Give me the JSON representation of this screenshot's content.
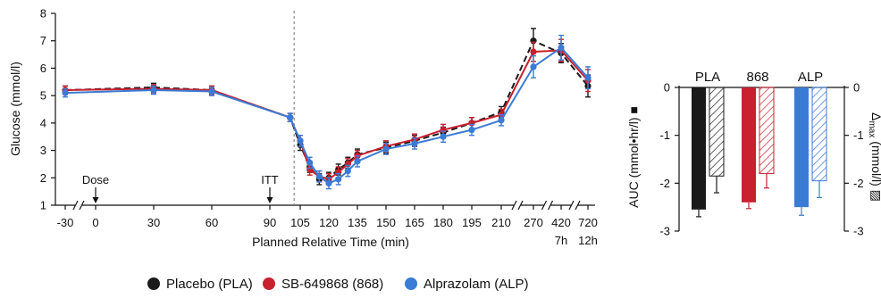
{
  "colors": {
    "placebo": "#1a1a1a",
    "sb": "#c8202f",
    "alp": "#3a7bd5",
    "axis": "#111111",
    "dashed_vline": "#8a8a8a"
  },
  "chart_data": [
    {
      "type": "line",
      "ylabel": "Glucose (mmol/l)",
      "xlabel": "Planned Relative Time (min)",
      "ylim": [
        1,
        8
      ],
      "yticks": [
        1,
        2,
        3,
        4,
        5,
        6,
        7,
        8
      ],
      "xtick_labels": [
        "-30",
        "0",
        "30",
        "60",
        "90",
        "105",
        "120",
        "135",
        "150",
        "165",
        "180",
        "195",
        "210",
        "270",
        "420",
        "720"
      ],
      "xtick_sublabels": [
        {
          "at": "420",
          "text": "7h"
        },
        {
          "at": "720",
          "text": "12h"
        }
      ],
      "annotations": [
        {
          "text": "Dose",
          "at": 0
        },
        {
          "text": "ITT",
          "at": 90
        }
      ],
      "vertical_reference_line_at": 102,
      "legend": {
        "position": "bottom",
        "entries": [
          "Placebo (PLA)",
          "SB-649868 (868)",
          "Alprazolam (ALP)"
        ]
      },
      "series": [
        {
          "name": "Placebo (PLA)",
          "key": "placebo",
          "style": "dashed",
          "x": [
            -30,
            30,
            60,
            100,
            105,
            110,
            115,
            120,
            125,
            130,
            135,
            150,
            165,
            180,
            195,
            210,
            270,
            420,
            720
          ],
          "y": [
            5.2,
            5.3,
            5.2,
            4.2,
            3.2,
            2.4,
            1.95,
            2.0,
            2.3,
            2.55,
            2.85,
            3.1,
            3.35,
            3.65,
            4.0,
            4.4,
            7.0,
            6.55,
            5.35
          ],
          "err": [
            0.15,
            0.15,
            0.15,
            0.15,
            0.2,
            0.2,
            0.2,
            0.2,
            0.2,
            0.2,
            0.2,
            0.2,
            0.2,
            0.2,
            0.2,
            0.2,
            0.45,
            0.35,
            0.4
          ]
        },
        {
          "name": "SB-649868 (868)",
          "key": "sb",
          "style": "solid",
          "x": [
            -30,
            30,
            60,
            100,
            105,
            110,
            115,
            120,
            125,
            130,
            135,
            150,
            165,
            180,
            195,
            210,
            270,
            420,
            720
          ],
          "y": [
            5.2,
            5.25,
            5.2,
            4.2,
            3.35,
            2.3,
            2.05,
            1.95,
            2.2,
            2.5,
            2.8,
            3.15,
            3.4,
            3.75,
            4.0,
            4.3,
            6.6,
            6.65,
            5.55
          ],
          "err": [
            0.15,
            0.15,
            0.15,
            0.15,
            0.2,
            0.2,
            0.2,
            0.2,
            0.2,
            0.2,
            0.2,
            0.2,
            0.2,
            0.2,
            0.2,
            0.2,
            0.35,
            0.4,
            0.4
          ]
        },
        {
          "name": "Alprazolam (ALP)",
          "key": "alp",
          "style": "solid",
          "x": [
            -30,
            30,
            60,
            100,
            105,
            110,
            115,
            120,
            125,
            130,
            135,
            150,
            165,
            180,
            195,
            210,
            270,
            420,
            720
          ],
          "y": [
            5.1,
            5.2,
            5.15,
            4.2,
            3.35,
            2.55,
            2.05,
            1.8,
            1.95,
            2.25,
            2.6,
            3.05,
            3.25,
            3.5,
            3.75,
            4.1,
            6.05,
            6.75,
            5.65
          ],
          "err": [
            0.15,
            0.15,
            0.15,
            0.15,
            0.2,
            0.2,
            0.2,
            0.2,
            0.2,
            0.2,
            0.2,
            0.2,
            0.2,
            0.2,
            0.2,
            0.2,
            0.4,
            0.45,
            0.4
          ]
        }
      ]
    },
    {
      "type": "bar",
      "categories": [
        "PLA",
        "868",
        "ALP"
      ],
      "ylabel_left": "AUC (mmol•hr/l) ■",
      "ylabel_right_prefix": "Δ",
      "ylabel_right_sub": "max",
      "ylabel_right_suffix": " (mmol/l) ▨",
      "ylim": [
        -3,
        0
      ],
      "yticks": [
        0,
        -1,
        -2,
        -3
      ],
      "series": [
        {
          "fill": "solid",
          "values": [
            -2.55,
            -2.4,
            -2.5
          ],
          "err": [
            0.15,
            0.13,
            0.17
          ]
        },
        {
          "fill": "hatched",
          "values": [
            -1.85,
            -1.8,
            -1.95
          ],
          "err": [
            0.35,
            0.3,
            0.35
          ]
        }
      ]
    }
  ]
}
